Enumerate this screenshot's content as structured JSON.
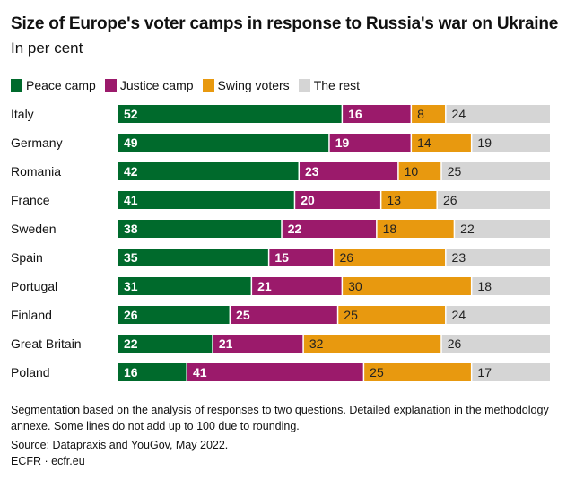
{
  "chart_data": {
    "type": "bar",
    "orientation": "horizontal",
    "stacked": true,
    "title": "Size of Europe's voter camps in response to Russia's war on Ukraine",
    "subtitle": "In per cent",
    "xlabel": "",
    "ylabel": "",
    "xlim": [
      0,
      100
    ],
    "grid": false,
    "legend_position": "top-left",
    "categories": [
      "Italy",
      "Germany",
      "Romania",
      "France",
      "Sweden",
      "Spain",
      "Portugal",
      "Finland",
      "Great Britain",
      "Poland"
    ],
    "series": [
      {
        "name": "Peace camp",
        "color": "#006a2c",
        "label_color": "#ffffff",
        "values": [
          52,
          49,
          42,
          41,
          38,
          35,
          31,
          26,
          22,
          16
        ]
      },
      {
        "name": "Justice camp",
        "color": "#9b1a6b",
        "label_color": "#ffffff",
        "values": [
          16,
          19,
          23,
          20,
          22,
          15,
          21,
          25,
          21,
          41
        ]
      },
      {
        "name": "Swing voters",
        "color": "#e8990f",
        "label_color": "#222222",
        "values": [
          8,
          14,
          10,
          13,
          18,
          26,
          30,
          25,
          32,
          25
        ]
      },
      {
        "name": "The rest",
        "color": "#d5d5d5",
        "label_color": "#222222",
        "values": [
          24,
          19,
          25,
          26,
          22,
          23,
          18,
          24,
          26,
          17
        ]
      }
    ]
  },
  "notes": "Segmentation based on the analysis of responses to two questions. Detailed explanation in the methodology annexe. Some lines do not add up to 100 due to rounding.",
  "source": "Source: Datapraxis and YouGov, May 2022.",
  "credit": "ECFR · ecfr.eu"
}
